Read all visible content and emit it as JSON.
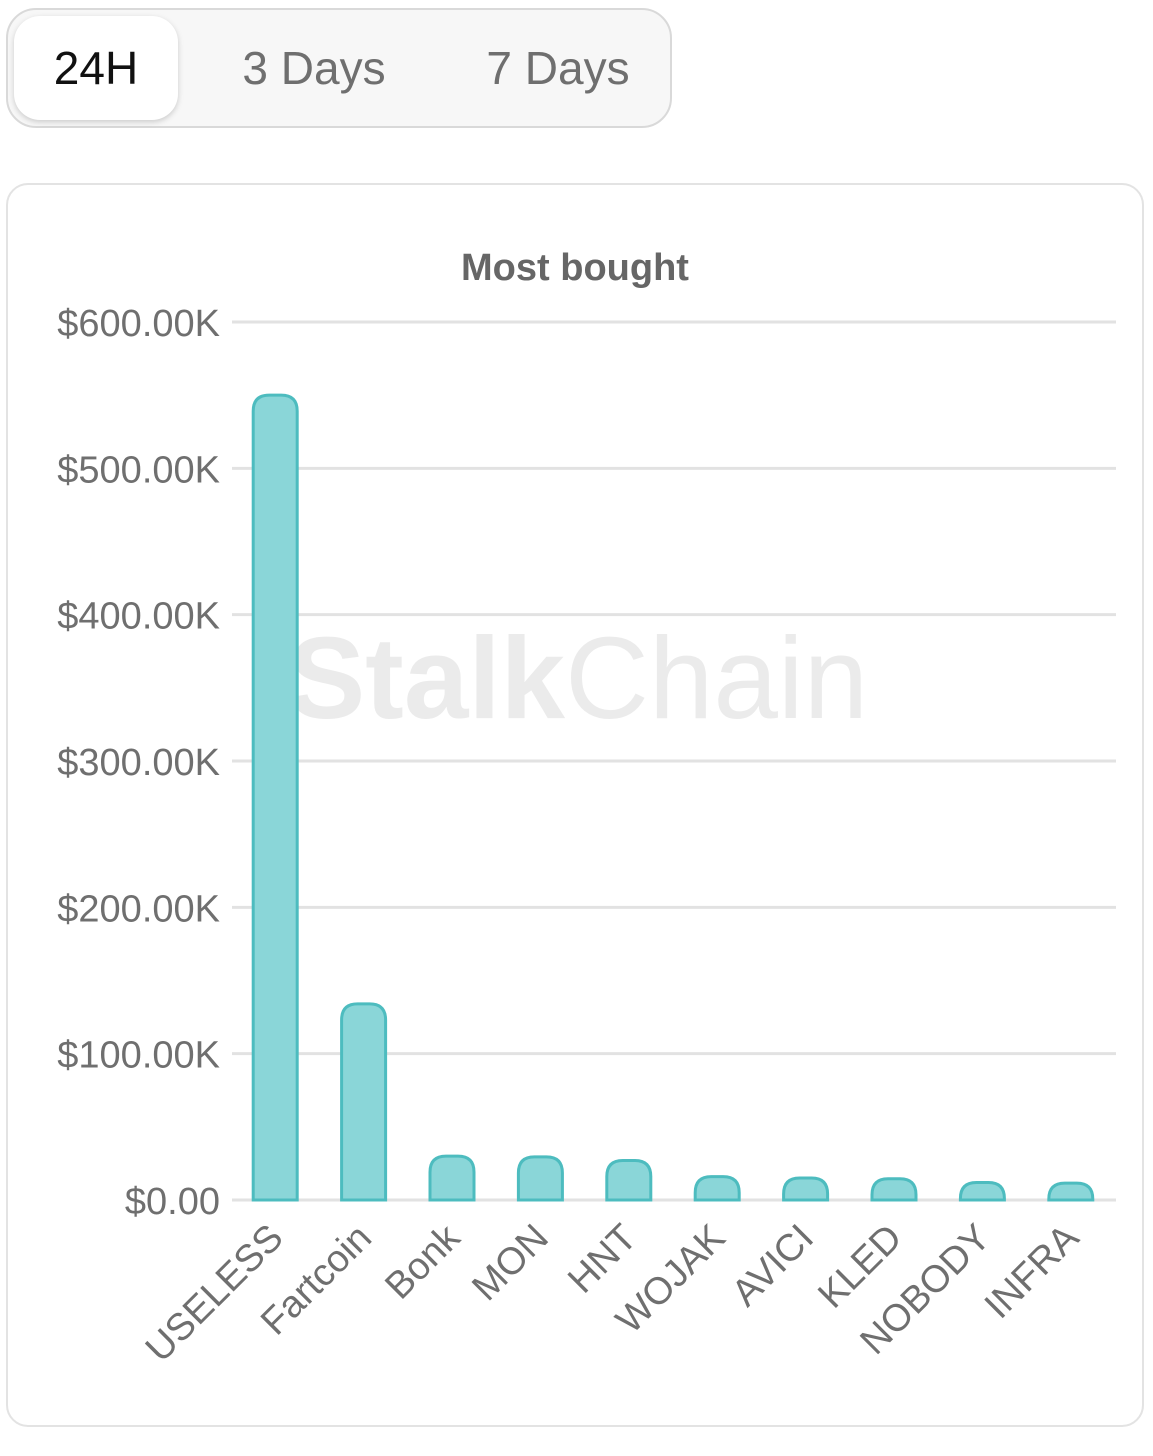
{
  "timeframe_tabs": [
    {
      "label": "24H",
      "active": true
    },
    {
      "label": "3 Days",
      "active": false
    },
    {
      "label": "7 Days",
      "active": false
    }
  ],
  "watermark": {
    "bold": "Stalk",
    "light": "Chain"
  },
  "colors": {
    "bar_fill": "#8ad6d8",
    "bar_stroke": "#4dbcbf",
    "grid": "#e2e2e2",
    "tick_text": "#6f6f6f",
    "title_text": "#666666"
  },
  "chart_data": {
    "type": "bar",
    "title": "Most bought",
    "xlabel": "",
    "ylabel": "",
    "ylim": [
      0,
      600000
    ],
    "y_ticks": [
      "$0.00",
      "$100.00K",
      "$200.00K",
      "$300.00K",
      "$400.00K",
      "$500.00K",
      "$600.00K"
    ],
    "grid": true,
    "legend": "none",
    "categories": [
      "USELESS",
      "Fartcoin",
      "Bonk",
      "MON",
      "HNT",
      "WOJAK",
      "AVICI",
      "KLED",
      "NOBODY",
      "INFRA"
    ],
    "values": [
      550000,
      134000,
      30000,
      29500,
      27000,
      16000,
      15000,
      14500,
      12000,
      11500
    ]
  }
}
